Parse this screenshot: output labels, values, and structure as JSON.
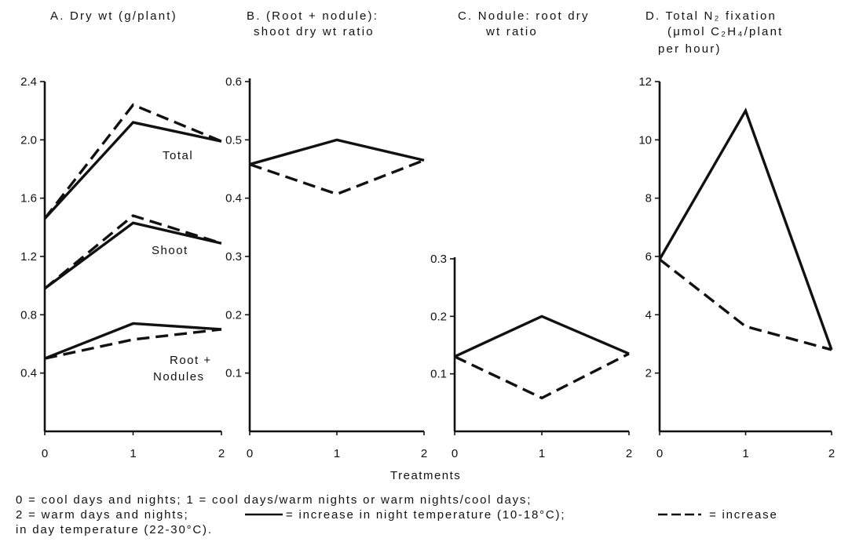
{
  "chart_data": [
    {
      "id": "A",
      "type": "line",
      "title": "A.  Dry wt  (g/plant)",
      "x": [
        0,
        1,
        2
      ],
      "xlim": [
        0,
        2
      ],
      "ylim": [
        0,
        2.4
      ],
      "yticks": [
        0.4,
        0.8,
        1.2,
        1.6,
        2.0,
        2.4
      ],
      "ytick_labels": [
        "0.4",
        "0.8",
        "1.2",
        "1.6",
        "2.0",
        "2.4"
      ],
      "xtick_labels": [
        "0",
        "1",
        "2"
      ],
      "groups": [
        {
          "label": "Total",
          "series": [
            {
              "style": "solid",
              "values": [
                1.46,
                2.12,
                1.99
              ]
            },
            {
              "style": "dashed",
              "values": [
                1.46,
                2.24,
                1.99
              ]
            }
          ]
        },
        {
          "label": "Shoot",
          "series": [
            {
              "style": "solid",
              "values": [
                0.98,
                1.43,
                1.29
              ]
            },
            {
              "style": "dashed",
              "values": [
                0.98,
                1.48,
                1.29
              ]
            }
          ]
        },
        {
          "label": "Root + Nodules",
          "label_lines": [
            "Root +",
            "Nodules"
          ],
          "series": [
            {
              "style": "solid",
              "values": [
                0.5,
                0.74,
                0.7
              ]
            },
            {
              "style": "dashed",
              "values": [
                0.5,
                0.63,
                0.7
              ]
            }
          ]
        }
      ]
    },
    {
      "id": "B",
      "type": "line",
      "title": "B.  (Root + nodule):",
      "title_line2": "shoot dry wt ratio",
      "x": [
        0,
        1,
        2
      ],
      "xlim": [
        0,
        2
      ],
      "ylim": [
        0,
        0.6
      ],
      "yticks": [
        0.1,
        0.2,
        0.3,
        0.4,
        0.5,
        0.6
      ],
      "ytick_labels": [
        "0.1",
        "0.2",
        "0.3",
        "0.4",
        "0.5",
        "0.6"
      ],
      "xtick_labels": [
        "0",
        "1",
        "2"
      ],
      "series": [
        {
          "style": "solid",
          "values": [
            0.458,
            0.5,
            0.465
          ]
        },
        {
          "style": "dashed",
          "values": [
            0.458,
            0.407,
            0.465
          ]
        }
      ]
    },
    {
      "id": "C",
      "type": "line",
      "title": "C.  Nodule:  root dry",
      "title_line2": "wt ratio",
      "x": [
        0,
        1,
        2
      ],
      "xlim": [
        0,
        2
      ],
      "ylim": [
        0,
        0.3
      ],
      "yticks": [
        0.1,
        0.2,
        0.3
      ],
      "ytick_labels": [
        "0.1",
        "0.2",
        "0.3"
      ],
      "xtick_labels": [
        "0",
        "1",
        "2"
      ],
      "series": [
        {
          "style": "solid",
          "values": [
            0.13,
            0.2,
            0.135
          ]
        },
        {
          "style": "dashed",
          "values": [
            0.13,
            0.058,
            0.135
          ]
        }
      ]
    },
    {
      "id": "D",
      "type": "line",
      "title": "D.  Total  N₂ fixation",
      "title_line2": "(μmol  C₂H₄/plant",
      "title_line3": "per  hour)",
      "x": [
        0,
        1,
        2
      ],
      "xlim": [
        0,
        2
      ],
      "ylim": [
        0,
        12
      ],
      "yticks": [
        2,
        4,
        6,
        8,
        10,
        12
      ],
      "ytick_labels": [
        "2",
        "4",
        "6",
        "8",
        "10",
        "12"
      ],
      "xtick_labels": [
        "0",
        "1",
        "2"
      ],
      "series": [
        {
          "style": "solid",
          "values": [
            5.9,
            11.0,
            2.8
          ]
        },
        {
          "style": "dashed",
          "values": [
            5.9,
            3.6,
            2.8
          ]
        }
      ]
    }
  ],
  "xlabel": "Treatments",
  "caption": {
    "line1": "0 = cool  days  and  nights;     1 =  cool  days/warm  nights  or  warm  nights/cool  days;",
    "line2_a": "2  =  warm  days  and  nights;",
    "line2_b": "= increase  in  night  temperature  (10-18°C);",
    "line2_c": "=  increase",
    "line3": "in  day  temperature  (22-30°C)."
  }
}
